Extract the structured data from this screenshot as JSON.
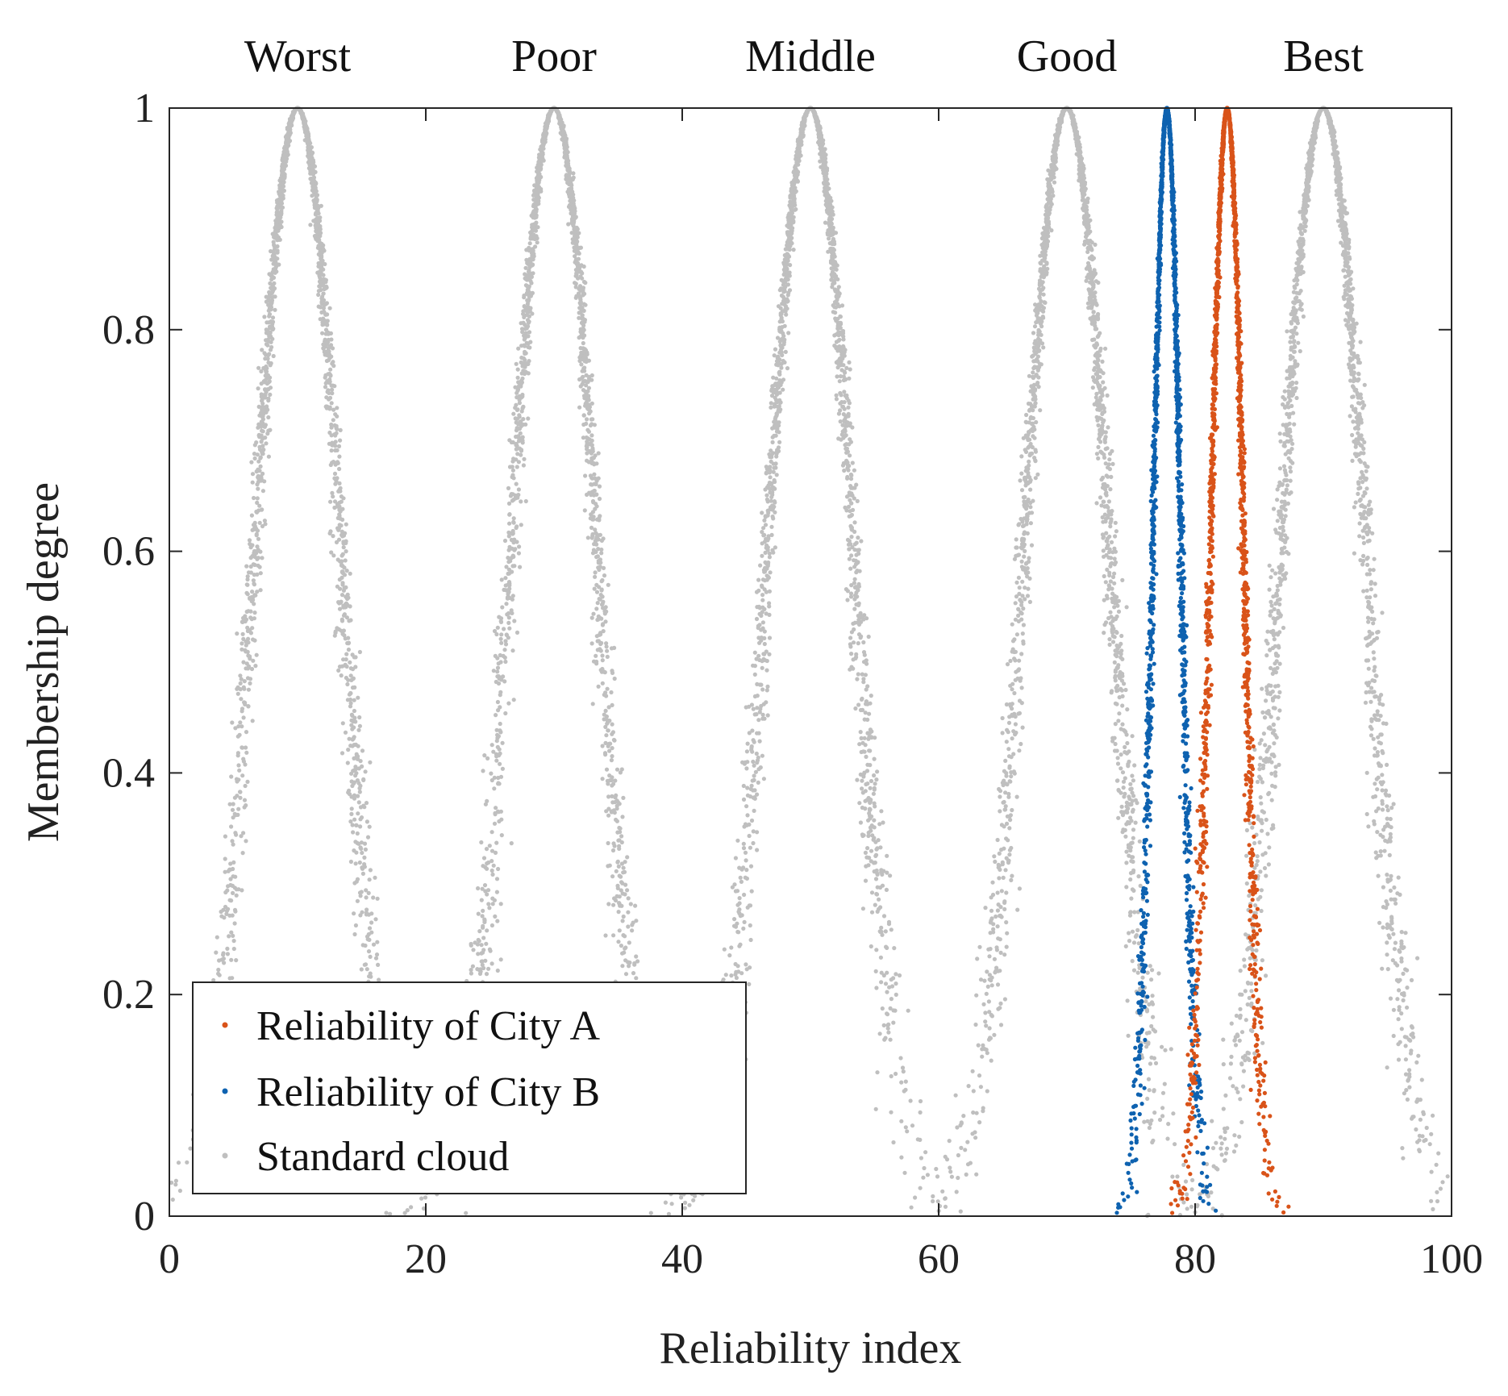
{
  "chart_data": {
    "type": "scatter",
    "title": "",
    "xlabel": "Reliability index",
    "ylabel": "Membership degree",
    "xlim": [
      0,
      100
    ],
    "ylim": [
      0,
      1
    ],
    "xticks": [
      0,
      20,
      40,
      60,
      80,
      100
    ],
    "yticks": [
      0,
      0.2,
      0.4,
      0.6,
      0.8,
      1
    ],
    "xtick_labels": [
      "0",
      "20",
      "40",
      "60",
      "80",
      "100"
    ],
    "ytick_labels": [
      "0",
      "0.2",
      "0.4",
      "0.6",
      "0.8",
      "1"
    ],
    "grades": [
      {
        "label": "Worst",
        "center": 10
      },
      {
        "label": "Poor",
        "center": 30
      },
      {
        "label": "Middle",
        "center": 50
      },
      {
        "label": "Good",
        "center": 70
      },
      {
        "label": "Best",
        "center": 90
      }
    ],
    "legend_position": "bottom-left",
    "series": [
      {
        "name": "Reliability of City A",
        "color": "#d95319",
        "Ex": 82.5,
        "En": 1.3,
        "He": 0.12,
        "points": 2000
      },
      {
        "name": "Reliability of City B",
        "color": "#0e62b0",
        "Ex": 77.8,
        "En": 1.1,
        "He": 0.1,
        "points": 2000
      },
      {
        "name": "Standard cloud",
        "color": "#bfbfbf",
        "Ex": [
          10,
          30,
          50,
          70,
          90
        ],
        "En": 3.33,
        "He": 0.3,
        "points": 2000
      }
    ]
  }
}
